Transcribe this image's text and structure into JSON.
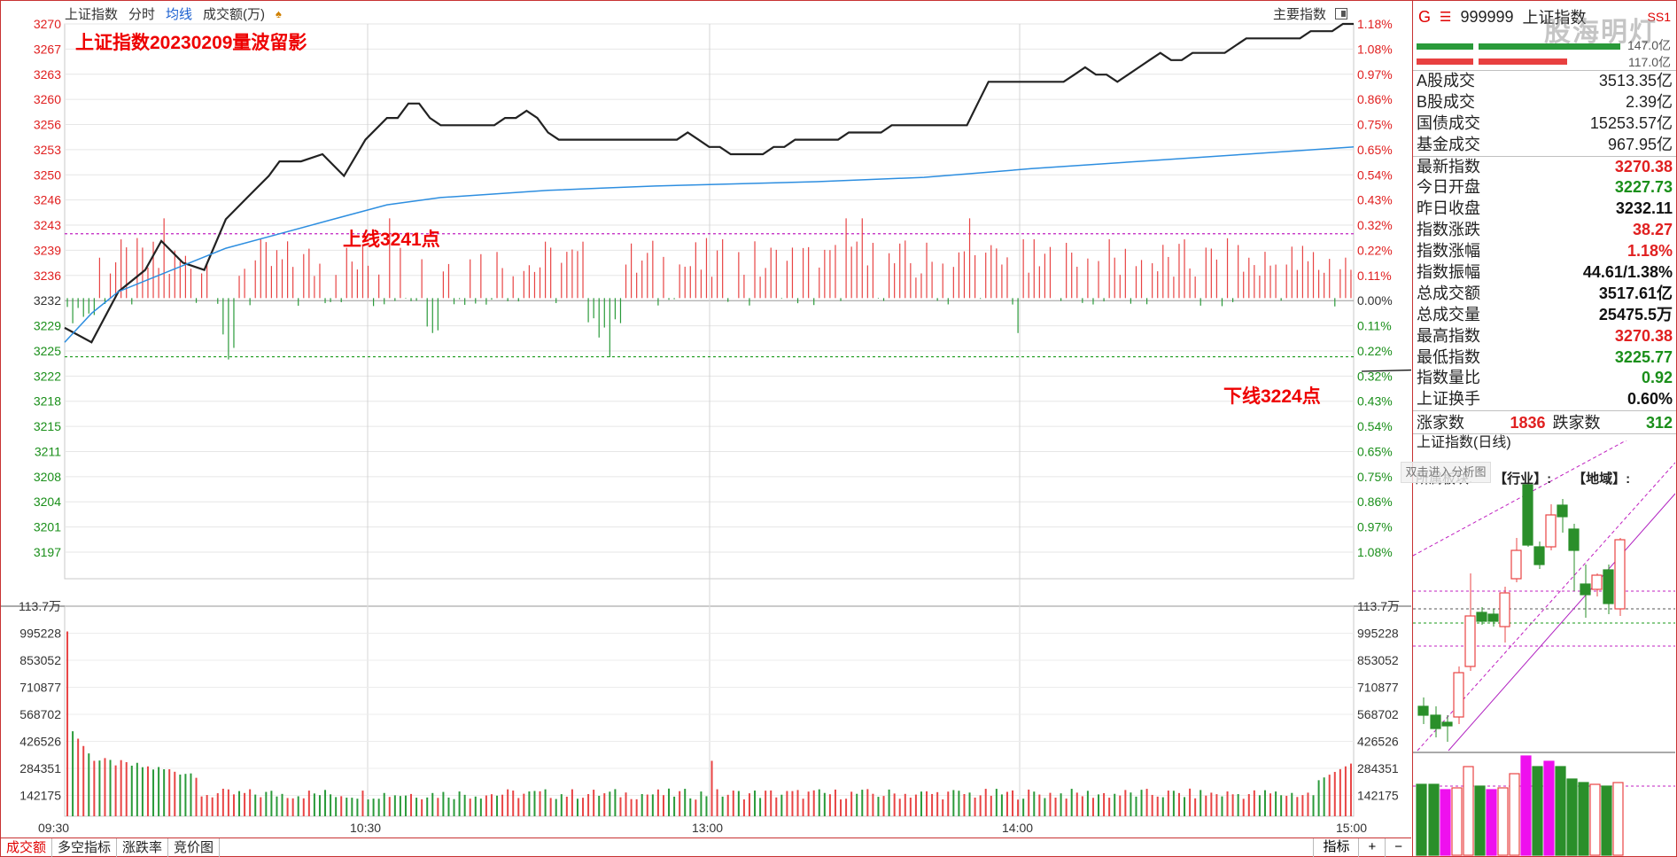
{
  "toolbar": {
    "index_name": "上证指数",
    "fenshi": "分时",
    "junxian": "均线",
    "volume": "成交额(万)",
    "main_indicator": "主要指数"
  },
  "annotations": {
    "title": "上证指数20230209量波留影",
    "upper_line": "上线3241点",
    "lower_line": "下线3224点"
  },
  "axes": {
    "price_ticks": [
      "3270",
      "3267",
      "3263",
      "3260",
      "3256",
      "3253",
      "3250",
      "3246",
      "3243",
      "3239",
      "3236",
      "3232",
      "3229",
      "3225",
      "3222",
      "3218",
      "3215",
      "3211",
      "3208",
      "3204",
      "3201",
      "3197"
    ],
    "pct_ticks_up": [
      "1.18%",
      "1.08%",
      "0.97%",
      "0.86%",
      "0.75%",
      "0.65%",
      "0.54%",
      "0.43%",
      "0.32%",
      "0.22%",
      "0.11%",
      "0.00%"
    ],
    "pct_ticks_down": [
      "0.11%",
      "0.22%",
      "0.32%",
      "0.43%",
      "0.54%",
      "0.65%",
      "0.75%",
      "0.86%",
      "0.97%",
      "1.08%"
    ],
    "vol_ticks": [
      "113.7万",
      "995228",
      "853052",
      "710877",
      "568702",
      "426526",
      "284351",
      "142175"
    ],
    "time_ticks": [
      "09:30",
      "10:30",
      "13:00",
      "14:00",
      "15:00"
    ]
  },
  "chart_data": {
    "type": "line",
    "title": "上证指数20230209量波留影",
    "x_range": [
      "09:30",
      "15:00"
    ],
    "price_range": [
      3197,
      3270
    ],
    "prev_close": 3232.11,
    "upper_line": 3241,
    "lower_line": 3224,
    "series": [
      {
        "name": "分时",
        "color": "#222222",
        "x": [
          0,
          5,
          10,
          15,
          18,
          22,
          26,
          30,
          34,
          38,
          40,
          44,
          48,
          52,
          56,
          60,
          62,
          64,
          66,
          68,
          70,
          72,
          74,
          76,
          78,
          80,
          82,
          84,
          86,
          88,
          90,
          92,
          94,
          96,
          98,
          100,
          102,
          104,
          106,
          108,
          110,
          112,
          114,
          116,
          118,
          120,
          122,
          124,
          126,
          128,
          130,
          132,
          134,
          136,
          138,
          140,
          142,
          144,
          146,
          148,
          150,
          152,
          154,
          156,
          158,
          160,
          162,
          164,
          166,
          168,
          170,
          172,
          174,
          176,
          178,
          180,
          182,
          184,
          186,
          188,
          190,
          192,
          194,
          196,
          198,
          200,
          202,
          204,
          206,
          208,
          210,
          212,
          214,
          216,
          218,
          220,
          222,
          224,
          226,
          228,
          230,
          232,
          234,
          236,
          238,
          240
        ],
        "values": [
          3228,
          3226,
          3233,
          3236,
          3240,
          3237,
          3236,
          3243,
          3246,
          3249,
          3251,
          3251,
          3252,
          3249,
          3254,
          3257,
          3257,
          3259,
          3259,
          3257,
          3256,
          3256,
          3256,
          3256,
          3256,
          3256,
          3257,
          3257,
          3258,
          3257,
          3255,
          3254,
          3254,
          3254,
          3254,
          3254,
          3254,
          3254,
          3254,
          3254,
          3254,
          3254,
          3254,
          3255,
          3254,
          3253,
          3253,
          3252,
          3252,
          3252,
          3252,
          3253,
          3253,
          3254,
          3254,
          3254,
          3254,
          3254,
          3255,
          3255,
          3255,
          3255,
          3256,
          3256,
          3256,
          3256,
          3256,
          3256,
          3256,
          3256,
          3259,
          3262,
          3262,
          3262,
          3262,
          3262,
          3262,
          3262,
          3262,
          3263,
          3264,
          3263,
          3263,
          3262,
          3263,
          3264,
          3265,
          3266,
          3265,
          3265,
          3266,
          3266,
          3266,
          3266,
          3267,
          3268,
          3268,
          3268,
          3268,
          3268,
          3268,
          3269,
          3269,
          3269,
          3270,
          3270
        ]
      },
      {
        "name": "均线",
        "color": "#2d8ee0",
        "x": [
          0,
          5,
          10,
          20,
          30,
          40,
          50,
          60,
          70,
          80,
          90,
          100,
          110,
          120,
          140,
          160,
          180,
          200,
          220,
          240
        ],
        "values": [
          3226,
          3230,
          3233,
          3236,
          3239,
          3241,
          3243,
          3245,
          3246,
          3246.5,
          3247,
          3247.3,
          3247.6,
          3247.8,
          3248.2,
          3248.8,
          3250,
          3251,
          3252,
          3253
        ]
      }
    ],
    "legend": "none"
  },
  "right_panel": {
    "header": {
      "g": "G",
      "marker": "☰",
      "code": "999999",
      "name": "上证指数",
      "tag": "SS1"
    },
    "watermark": "股海明灯",
    "bar_values": [
      "147.0亿",
      "117.0亿"
    ],
    "turnover": [
      {
        "k": "A股成交",
        "v": "3513.35亿"
      },
      {
        "k": "B股成交",
        "v": "2.39亿"
      },
      {
        "k": "国债成交",
        "v": "15253.57亿"
      },
      {
        "k": "基金成交",
        "v": "967.95亿"
      }
    ],
    "stats": [
      {
        "k": "最新指数",
        "v": "3270.38",
        "c": "red"
      },
      {
        "k": "今日开盘",
        "v": "3227.73",
        "c": "green"
      },
      {
        "k": "昨日收盘",
        "v": "3232.11",
        "c": "blk"
      },
      {
        "k": "指数涨跌",
        "v": "38.27",
        "c": "red"
      },
      {
        "k": "指数涨幅",
        "v": "1.18%",
        "c": "red"
      },
      {
        "k": "指数振幅",
        "v": "44.61/1.38%",
        "c": "blk"
      },
      {
        "k": "总成交额",
        "v": "3517.61亿",
        "c": "blk"
      },
      {
        "k": "总成交量",
        "v": "25475.5万",
        "c": "blk"
      },
      {
        "k": "最高指数",
        "v": "3270.38",
        "c": "red"
      },
      {
        "k": "最低指数",
        "v": "3225.77",
        "c": "green"
      },
      {
        "k": "指数量比",
        "v": "0.92",
        "c": "green"
      },
      {
        "k": "上证换手",
        "v": "0.60%",
        "c": "blk"
      }
    ],
    "advance": {
      "up_label": "涨家数",
      "up": "1836",
      "down_label": "跌家数",
      "down": "312"
    },
    "mini_title": "上证指数(日线)",
    "mini_sub": {
      "sector": "所属板块:",
      "industry": "【行业】:",
      "region": "【地域】:"
    },
    "overlay": "双击进入分析图"
  },
  "tabs": [
    "成交额",
    "多空指标",
    "涨跌率",
    "竞价图"
  ],
  "tabs_right": [
    "指标",
    "+",
    "−"
  ]
}
